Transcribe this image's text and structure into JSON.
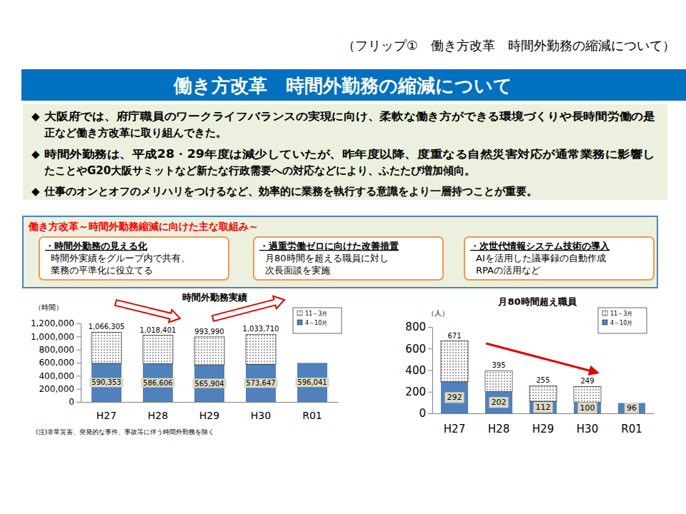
{
  "page": {
    "flip_label": "（フリップ①　働き方改革　時間外勤務の縮減について）",
    "banner_title": "働き方改革　時間外勤務の縮減について",
    "bullet_symbol": "◆",
    "bullets": [
      [
        "大阪府では、府庁職員のワークライフバランスの実現に向け、柔軟な働き方ができる環境づくりや長時間労働の是",
        "正など働き方改革に取り組んできた。"
      ],
      [
        "時間外勤務は、平成28・29年度は減少していたが、昨年度以降、度重なる自然災害対応が通常業務に影響し",
        "たことやG20大阪サミットなど新たな行政需要への対応などにより、ふたたび増加傾向。"
      ],
      [
        "仕事のオンとオフのメリハリをつけるなど、効率的に業務を執行する意識をより一層持つことが重要。"
      ]
    ],
    "initiatives": {
      "title": "働き方改革～時間外勤務縮減に向けた主な取組み～",
      "items": [
        {
          "title": "・時間外勤務の見える化",
          "lines": [
            "時間外実績をグループ内で共有、",
            "業務の平準化に役立てる"
          ]
        },
        {
          "title": "・過重労働ゼロに向けた改善措置",
          "lines": [
            "月80時間を超える職員に対し",
            "次長面談を実施"
          ]
        },
        {
          "title": "・次世代情報システム技術の導入",
          "lines": [
            "AIを活用した議事録の自動作成",
            "RPAの活用など"
          ]
        }
      ]
    }
  },
  "chart_data": [
    {
      "type": "bar",
      "stacked": true,
      "title": "時間外勤務実績",
      "y_label": "（時間）",
      "note": "(注)非常災害、突発的な事件、事故等に伴う時間外勤務を除く",
      "categories": [
        "H27",
        "H28",
        "H29",
        "H30",
        "R01"
      ],
      "series": [
        {
          "name": "4～10月",
          "color": "#4f81bd",
          "values": [
            590353,
            586606,
            565904,
            573647,
            596041
          ],
          "data_labels": true,
          "value_labels": [
            "590,353",
            "586,606",
            "565,904",
            "573,647",
            "596,041"
          ]
        },
        {
          "name": "11～3月",
          "color": "#ffffff",
          "values": [
            475952,
            431795,
            428086,
            460063,
            null
          ]
        }
      ],
      "totals": [
        1066305,
        1018401,
        993990,
        1033710,
        null
      ],
      "total_labels": [
        "1,066,305",
        "1,018,401",
        "993,990",
        "1,033,710",
        null
      ],
      "ylim": [
        0,
        1200000
      ],
      "yticks": [
        0,
        {
          "value": 200000,
          "label": "200,000"
        },
        {
          "value": 400000,
          "label": "400,000"
        },
        {
          "value": 600000,
          "label": "600,000"
        },
        {
          "value": 800000,
          "label": "800,000"
        },
        {
          "value": 1000000,
          "label": "1,000,000"
        },
        {
          "value": 1200000,
          "label": "1,200,000"
        }
      ],
      "legend": "upper right",
      "grid": false
    },
    {
      "type": "bar",
      "stacked": true,
      "title": "月80時間超え職員",
      "y_label": "（人）",
      "categories": [
        "H27",
        "H28",
        "H29",
        "H30",
        "R01"
      ],
      "series": [
        {
          "name": "4～10月",
          "color": "#4f81bd",
          "values": [
            292,
            202,
            112,
            100,
            96
          ],
          "data_labels": true
        },
        {
          "name": "11～3月",
          "color": "#ffffff",
          "values": [
            379,
            193,
            143,
            149,
            null
          ]
        }
      ],
      "totals": [
        671,
        395,
        255,
        249,
        null
      ],
      "total_labels": [
        "671",
        "395",
        "255",
        "249",
        null
      ],
      "ylim": [
        0,
        800
      ],
      "yticks": [
        0,
        200,
        400,
        600,
        800
      ],
      "legend": "upper right",
      "grid": false
    }
  ]
}
